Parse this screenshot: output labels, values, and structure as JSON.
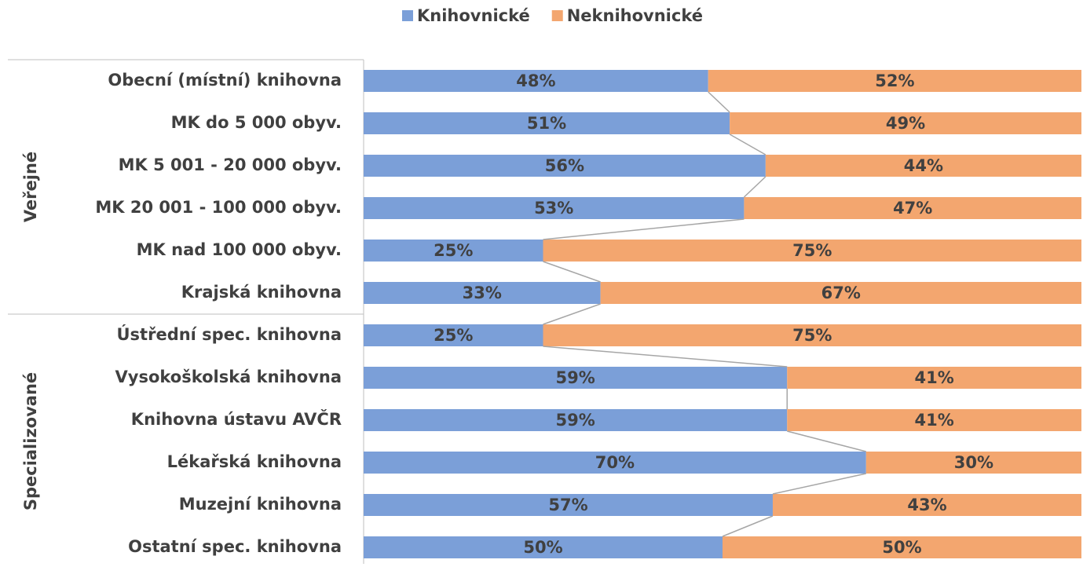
{
  "chart_data": {
    "type": "bar",
    "orientation": "horizontal",
    "stacked": true,
    "groups": [
      {
        "name": "Veřejné",
        "categories": [
          "Obecní (místní) knihovna",
          "MK do 5 000 obyv.",
          "MK  5 001 - 20 000 obyv.",
          "MK 20 001 - 100 000 obyv.",
          "MK nad 100 000 obyv.",
          "Krajská knihovna"
        ]
      },
      {
        "name": "Specializované",
        "categories": [
          "Ústřední spec. knihovna",
          "Vysokoškolská knihovna",
          "Knihovna ústavu AVČR",
          "Lékařská knihovna",
          "Muzejní knihovna",
          "Ostatní spec. knihovna"
        ]
      }
    ],
    "series": [
      {
        "name": "Knihovnické",
        "color": "#7b9fd8",
        "values": [
          48,
          51,
          56,
          53,
          25,
          33,
          25,
          59,
          59,
          70,
          57,
          50
        ],
        "value_labels": [
          "48%",
          "51%",
          "56%",
          "53%",
          "25%",
          "33%",
          "25%",
          "59%",
          "59%",
          "70%",
          "57%",
          "50%"
        ]
      },
      {
        "name": "Neknihovnické",
        "color": "#f3a66f",
        "values": [
          52,
          49,
          44,
          47,
          75,
          67,
          75,
          41,
          41,
          30,
          43,
          50
        ],
        "value_labels": [
          "52%",
          "49%",
          "44%",
          "47%",
          "75%",
          "67%",
          "75%",
          "41%",
          "41%",
          "30%",
          "43%",
          "50%"
        ]
      }
    ],
    "xlim": [
      0,
      100
    ],
    "series_lines": true,
    "legend": "top"
  }
}
